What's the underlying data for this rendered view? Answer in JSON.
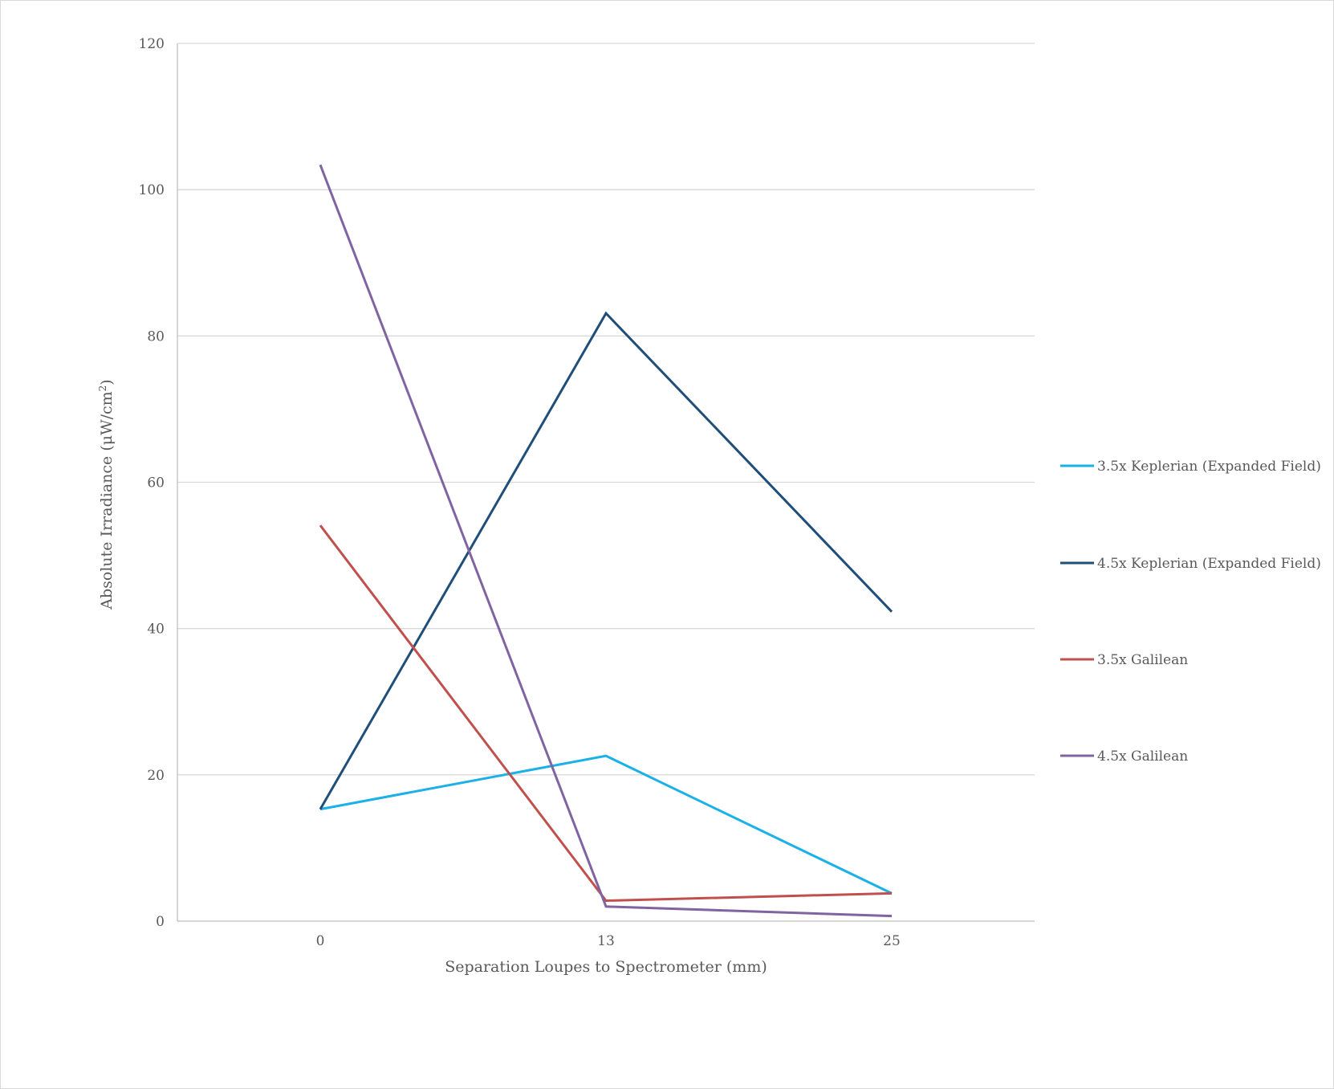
{
  "chart_data": {
    "type": "line",
    "title": "",
    "xlabel": "Separation Loupes to Spectrometer (mm)",
    "ylabel_text": "Absolute Irradiance (μW/cm",
    "ylabel_sup": "2",
    "ylabel_close": ")",
    "categories": [
      "0",
      "13",
      "25"
    ],
    "ylim": [
      0,
      120
    ],
    "yticks": [
      0,
      20,
      40,
      60,
      80,
      100,
      120
    ],
    "ytick_labels": [
      "0",
      "20",
      "40",
      "60",
      "80",
      "100",
      "120"
    ],
    "grid": true,
    "legend_position": "right",
    "series": [
      {
        "name": "3.5x Keplerian (Expanded Field)",
        "color": "#1ab0e8",
        "values": [
          15.3,
          22.6,
          3.8
        ]
      },
      {
        "name": "4.5x Keplerian (Expanded Field)",
        "color": "#1f4e79",
        "values": [
          15.3,
          83.1,
          42.3
        ]
      },
      {
        "name": "3.5x Galilean",
        "color": "#c0504d",
        "values": [
          54.1,
          2.8,
          3.8
        ]
      },
      {
        "name": "4.5x Galilean",
        "color": "#8064a2",
        "values": [
          103.4,
          2.0,
          0.7
        ]
      }
    ]
  }
}
